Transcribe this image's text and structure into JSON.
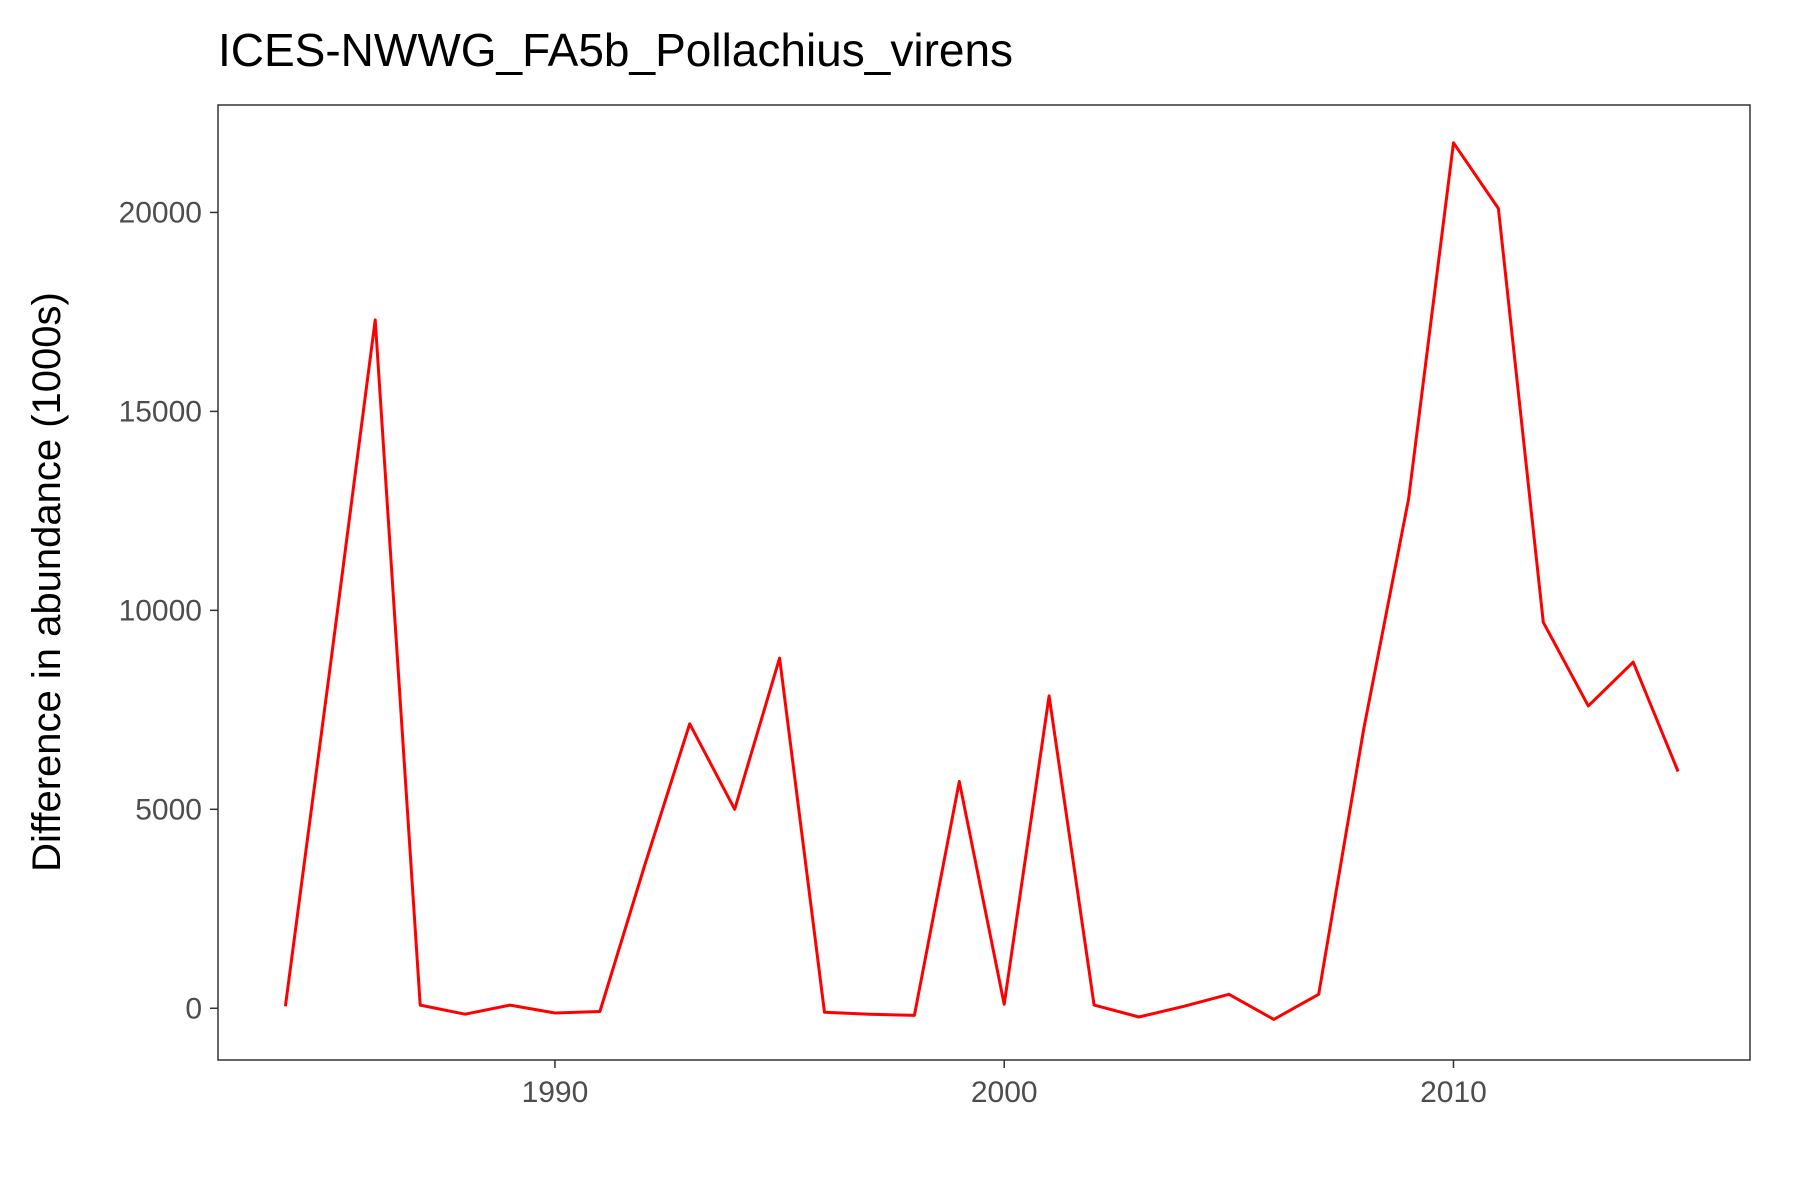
{
  "chart_data": {
    "type": "line",
    "title": "ICES-NWWG_FA5b_Pollachius_virens",
    "xlabel": "",
    "ylabel": "Difference in abundance (1000s)",
    "xlim": [
      1982.5,
      2016.6
    ],
    "ylim": [
      -1300,
      22700
    ],
    "x_ticks": [
      1990,
      2000,
      2010
    ],
    "y_ticks": [
      0,
      5000,
      10000,
      15000,
      20000
    ],
    "grid": false,
    "legend": "none",
    "series": [
      {
        "color": "#ff0000",
        "x": [
          1984,
          1985,
          1986,
          1987,
          1988,
          1989,
          1990,
          1991,
          1992,
          1993,
          1994,
          1995,
          1996,
          1997,
          1998,
          1999,
          2000,
          2001,
          2002,
          2003,
          2004,
          2005,
          2006,
          2007,
          2008,
          2009,
          2010,
          2011,
          2012,
          2013,
          2014,
          2015
        ],
        "y": [
          50,
          8600,
          17300,
          80,
          -150,
          80,
          -120,
          -80,
          3600,
          7150,
          5000,
          8800,
          -100,
          -150,
          -180,
          5700,
          100,
          7850,
          80,
          -220,
          50,
          350,
          -280,
          350,
          7000,
          12800,
          21750,
          20100,
          9700,
          7600,
          8700,
          5950
        ]
      }
    ]
  }
}
